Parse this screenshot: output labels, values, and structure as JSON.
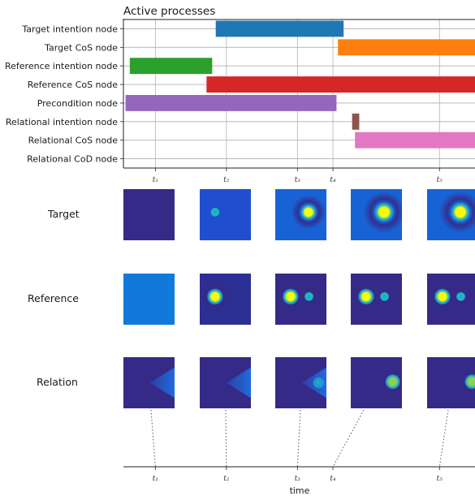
{
  "chart_data": [
    {
      "type": "gantt",
      "title": "Active processes",
      "x_ticks": [
        "t₁",
        "t₂",
        "t₃",
        "t₄",
        "t₅"
      ],
      "x_tick_values": [
        1,
        2,
        3,
        3.5,
        5
      ],
      "xlim": [
        0.55,
        5.5
      ],
      "grid": true,
      "rows": [
        {
          "label": "Target intention node",
          "intervals": [
            [
              1.85,
              3.65
            ]
          ],
          "color": "#1f77b4"
        },
        {
          "label": "Target CoS node",
          "intervals": [
            [
              3.57,
              5.5
            ]
          ],
          "color": "#ff7f0e"
        },
        {
          "label": "Reference intention node",
          "intervals": [
            [
              0.64,
              1.8
            ]
          ],
          "color": "#2ca02c"
        },
        {
          "label": "Reference CoS node",
          "intervals": [
            [
              1.72,
              5.5
            ]
          ],
          "color": "#d62728"
        },
        {
          "label": "Precondition node",
          "intervals": [
            [
              0.58,
              3.55
            ]
          ],
          "color": "#9467bd"
        },
        {
          "label": "Relational intention node",
          "intervals": [
            [
              3.77,
              3.87
            ]
          ],
          "color": "#8c564b"
        },
        {
          "label": "Relational CoS node",
          "intervals": [
            [
              3.81,
              5.5
            ]
          ],
          "color": "#e377c2"
        },
        {
          "label": "Relational CoD node",
          "intervals": [],
          "color": "#7f7f7f"
        }
      ]
    },
    {
      "type": "heatmap",
      "rows": [
        {
          "label": "Target",
          "frames": [
            {
              "bg": "#352a87",
              "blobs": []
            },
            {
              "bg": "#1f4fcf",
              "blobs": [
                {
                  "cx": 0.3,
                  "cy": 0.45,
                  "r": 0.08,
                  "peak": "#12b5c8"
                }
              ]
            },
            {
              "bg": "#1763d6",
              "blobs": [
                {
                  "cx": 0.65,
                  "cy": 0.45,
                  "r": 0.14,
                  "peak": "#f9fb0e",
                  "halo": true
                }
              ]
            },
            {
              "bg": "#1763d6",
              "blobs": [
                {
                  "cx": 0.65,
                  "cy": 0.45,
                  "r": 0.17,
                  "peak": "#f9fb0e",
                  "halo": true
                }
              ]
            },
            {
              "bg": "#1763d6",
              "blobs": [
                {
                  "cx": 0.65,
                  "cy": 0.45,
                  "r": 0.17,
                  "peak": "#f9fb0e",
                  "halo": true
                }
              ]
            }
          ]
        },
        {
          "label": "Reference",
          "frames": [
            {
              "bg": "#1179da",
              "blobs": []
            },
            {
              "bg": "#2c2f93",
              "blobs": [
                {
                  "cx": 0.3,
                  "cy": 0.45,
                  "r": 0.14,
                  "peak": "#f9fb0e",
                  "halo": true
                }
              ]
            },
            {
              "bg": "#352a87",
              "blobs": [
                {
                  "cx": 0.3,
                  "cy": 0.45,
                  "r": 0.14,
                  "peak": "#f9fb0e"
                },
                {
                  "cx": 0.66,
                  "cy": 0.45,
                  "r": 0.08,
                  "peak": "#12b5c8"
                }
              ]
            },
            {
              "bg": "#352a87",
              "blobs": [
                {
                  "cx": 0.3,
                  "cy": 0.45,
                  "r": 0.14,
                  "peak": "#f9fb0e"
                },
                {
                  "cx": 0.66,
                  "cy": 0.45,
                  "r": 0.08,
                  "peak": "#12b5c8"
                }
              ]
            },
            {
              "bg": "#352a87",
              "blobs": [
                {
                  "cx": 0.3,
                  "cy": 0.45,
                  "r": 0.14,
                  "peak": "#f9fb0e"
                },
                {
                  "cx": 0.66,
                  "cy": 0.45,
                  "r": 0.08,
                  "peak": "#12b5c8"
                }
              ]
            }
          ]
        },
        {
          "label": "Relation",
          "frames": [
            {
              "bg": "#352a87",
              "wedge": true
            },
            {
              "bg": "#352a87",
              "wedge": true
            },
            {
              "bg": "#352a87",
              "wedge": true,
              "blobs": [
                {
                  "cx": 0.85,
                  "cy": 0.5,
                  "r": 0.1,
                  "peak": "#1cb0b4"
                }
              ]
            },
            {
              "bg": "#352a87",
              "blobs": [
                {
                  "cx": 0.82,
                  "cy": 0.48,
                  "r": 0.13,
                  "peak": "#8ccf5a"
                }
              ]
            },
            {
              "bg": "#352a87",
              "blobs": [
                {
                  "cx": 0.88,
                  "cy": 0.48,
                  "r": 0.13,
                  "peak": "#8ccf5a"
                }
              ]
            }
          ]
        }
      ]
    },
    {
      "type": "timeline",
      "xlabel": "time",
      "x_ticks": [
        "t₁",
        "t₂",
        "t₃",
        "t₄",
        "t₅"
      ],
      "x_tick_values": [
        1,
        2,
        3,
        3.5,
        5
      ]
    }
  ]
}
